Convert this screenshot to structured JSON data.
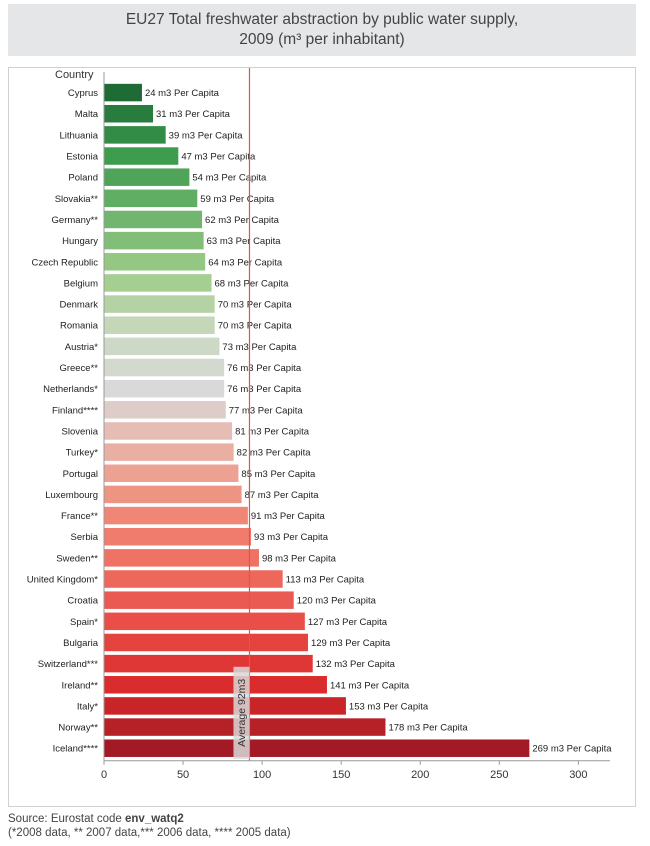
{
  "title": {
    "line1": "EU27 Total freshwater abstraction by public water supply,",
    "line2": "2009 (m³ per inhabitant)"
  },
  "source": {
    "prefix": "Source: Eurostat code",
    "code": "env_watq2",
    "note": "(*2008 data, ** 2007 data,*** 2006 data, **** 2005 data)"
  },
  "colors": {
    "reference_line": "#e0554a",
    "axis": "#999999",
    "gradient": [
      "#1e6b35",
      "#3a9a4c",
      "#6bb26b",
      "#9ccb86",
      "#c9d8bf",
      "#d9d9d9",
      "#eab0a4",
      "#f08a78",
      "#ef6c60",
      "#e84a44",
      "#d92a2a",
      "#a31a26"
    ]
  },
  "chart_data": {
    "type": "bar",
    "orientation": "horizontal",
    "ylabel": "Country",
    "value_suffix": " m3 Per Capita",
    "categories": [
      "Cyprus",
      "Malta",
      "Lithuania",
      "Estonia",
      "Poland",
      "Slovakia**",
      "Germany**",
      "Hungary",
      "Czech Republic",
      "Belgium",
      "Denmark",
      "Romania",
      "Austria*",
      "Greece**",
      "Netherlands*",
      "Finland****",
      "Slovenia",
      "Turkey*",
      "Portugal",
      "Luxembourg",
      "France**",
      "Serbia",
      "Sweden**",
      "United Kingdom*",
      "Croatia",
      "Spain*",
      "Bulgaria",
      "Switzerland***",
      "Ireland**",
      "Italy*",
      "Norway**",
      "Iceland****"
    ],
    "values": [
      24,
      31,
      39,
      47,
      54,
      59,
      62,
      63,
      64,
      68,
      70,
      70,
      73,
      76,
      76,
      77,
      81,
      82,
      85,
      87,
      91,
      93,
      98,
      113,
      120,
      127,
      129,
      132,
      141,
      153,
      178,
      269
    ],
    "xlim": [
      0,
      320
    ],
    "xticks": [
      0,
      50,
      100,
      150,
      200,
      250,
      300
    ],
    "reference_line": {
      "value": 92,
      "label": "Average 92m3"
    },
    "grid": false,
    "legend": "none"
  }
}
